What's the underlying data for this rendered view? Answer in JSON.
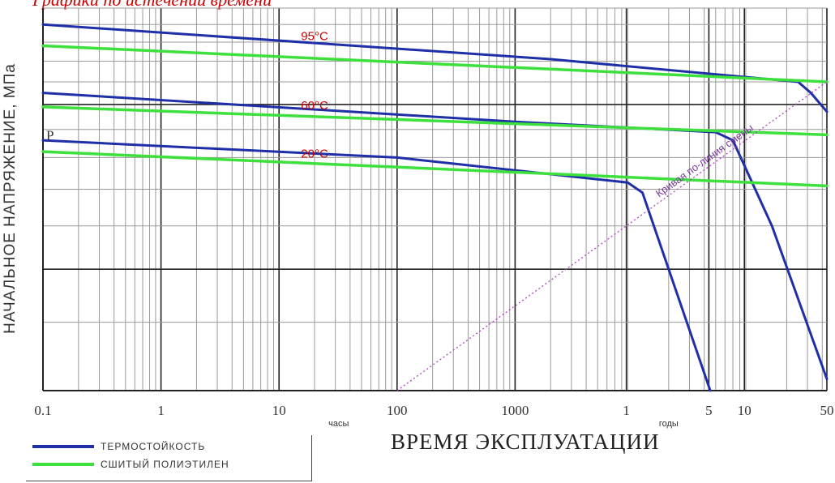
{
  "chart_data": {
    "type": "line",
    "title": "",
    "ylabel": "НАЧАЛЬНОЕ НАПРЯЖЕНИЕ, МПа",
    "xlabel": "ВРЕМЯ ЭКСПЛУАТАЦИИ",
    "x_scale": "log",
    "x_unit": "hours",
    "xlim_hours": [
      0.1,
      438000
    ],
    "x_ticks": [
      {
        "label": "0.1",
        "hours": 0.1
      },
      {
        "label": "1",
        "hours": 1
      },
      {
        "label": "10",
        "hours": 10
      },
      {
        "label": "100",
        "hours": 100
      },
      {
        "label": "1000",
        "hours": 1000
      },
      {
        "label": "1",
        "hours": 8760
      },
      {
        "label": "5",
        "hours": 43800
      },
      {
        "label": "10",
        "hours": 87600
      },
      {
        "label": "50",
        "hours": 438000
      }
    ],
    "x_unit_labels": [
      {
        "text": "часы",
        "hours": 32
      },
      {
        "text": "годы",
        "hours": 20000
      }
    ],
    "y_scale": "log",
    "ylim": [
      0.3,
      1.5
    ],
    "top_label": "Графики по истечении времени",
    "grid": true,
    "legend_position": "bottom-left",
    "legend": [
      {
        "label": "ТЕРМОСТОЙКОСТЬ",
        "color": "#1f2fa8"
      },
      {
        "label": "СШИТЫЙ ПОЛИЭТИЛЕН",
        "color": "#3ee03e"
      }
    ],
    "series": [
      {
        "family": 0,
        "group": "95°С",
        "color": "#1f2fa8",
        "points": [
          [
            0.1,
            1.4
          ],
          [
            2000,
            1.21
          ],
          [
            250000,
            1.1
          ],
          [
            320000,
            1.05
          ],
          [
            438000,
            0.97
          ]
        ]
      },
      {
        "family": 1,
        "group": "95°С",
        "color": "#3ee03e",
        "points": [
          [
            0.1,
            1.28
          ],
          [
            438000,
            1.1
          ]
        ]
      },
      {
        "family": 0,
        "group": "60°С",
        "color": "#1f2fa8",
        "points": [
          [
            0.1,
            1.05
          ],
          [
            1000,
            0.93
          ],
          [
            50000,
            0.89
          ],
          [
            70000,
            0.86
          ],
          [
            150000,
            0.6
          ],
          [
            438000,
            0.315
          ]
        ]
      },
      {
        "family": 1,
        "group": "60°С",
        "color": "#3ee03e",
        "points": [
          [
            0.1,
            0.99
          ],
          [
            438000,
            0.88
          ]
        ]
      },
      {
        "family": 0,
        "group": "20°С",
        "color": "#1f2fa8",
        "points": [
          [
            0.1,
            0.86
          ],
          [
            100,
            0.8
          ],
          [
            5000,
            0.73
          ],
          [
            9000,
            0.72
          ],
          [
            12000,
            0.69
          ],
          [
            45000,
            0.3
          ]
        ]
      },
      {
        "family": 1,
        "group": "20°С",
        "color": "#3ee03e",
        "points": [
          [
            0.1,
            0.82
          ],
          [
            438000,
            0.71
          ]
        ]
      }
    ],
    "annotations": [
      {
        "type": "label",
        "text": "95°С",
        "x": 20,
        "y": 1.31,
        "color": "#cc0000"
      },
      {
        "type": "label",
        "text": "60°С",
        "x": 20,
        "y": 0.98,
        "color": "#cc0000"
      },
      {
        "type": "label",
        "text": "20°С",
        "x": 20,
        "y": 0.8,
        "color": "#cc0000"
      },
      {
        "type": "label",
        "text": "Р",
        "x": 0.1,
        "y": 0.88,
        "color": "#222222"
      },
      {
        "type": "dotted-line",
        "text": "Кривая по-линия смены",
        "color": "#b040c0",
        "points": [
          [
            100,
            0.3
          ],
          [
            438000,
            1.1
          ]
        ]
      }
    ]
  }
}
